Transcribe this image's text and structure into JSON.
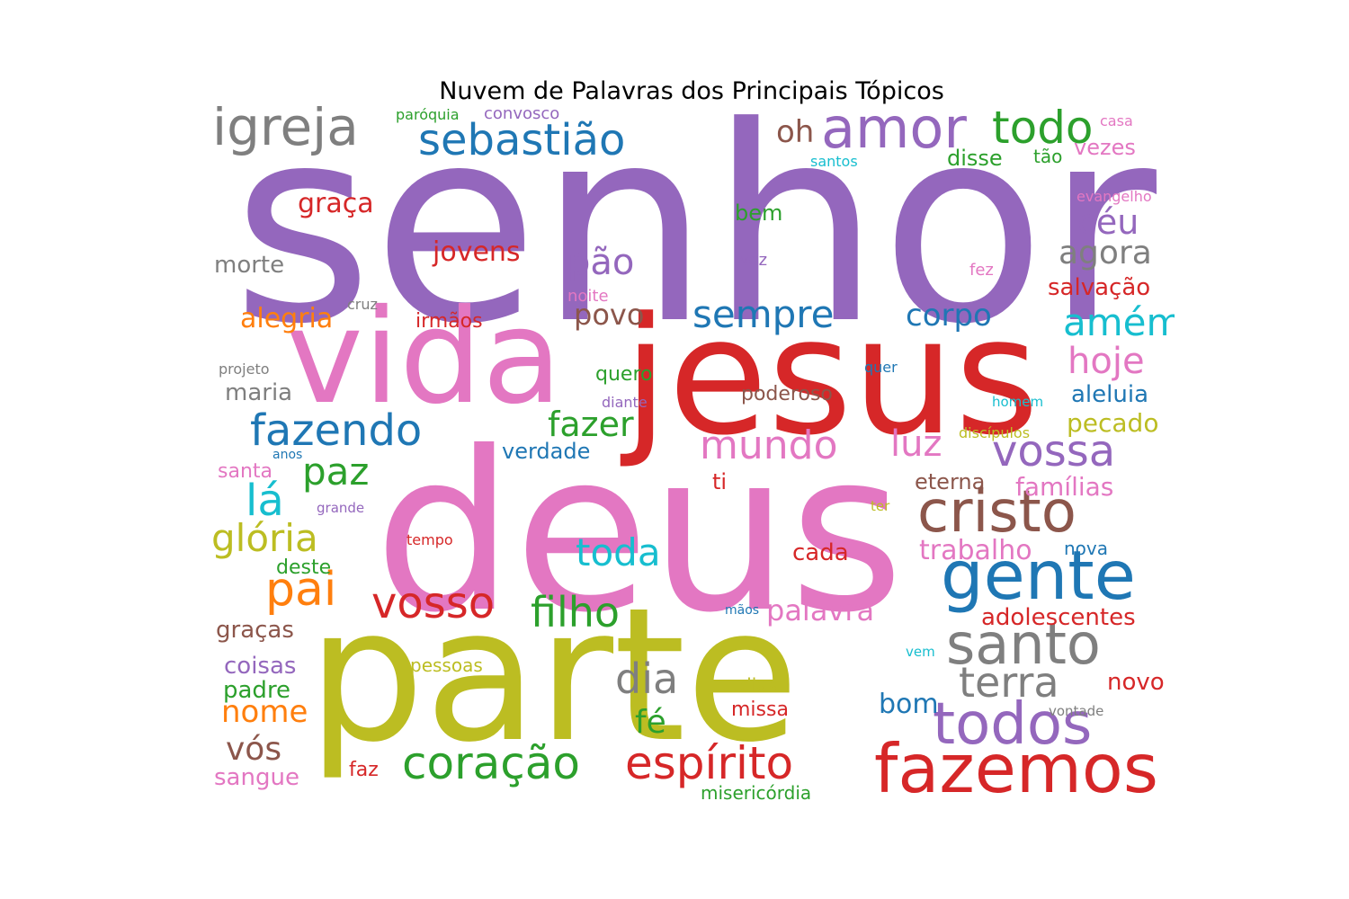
{
  "title": "Nuvem de Palavras dos Principais Tópicos",
  "palette": {
    "purple": "#9467bd",
    "red": "#d62728",
    "pink": "#e377c2",
    "olive": "#bcbd22",
    "blue": "#1f77b4",
    "green": "#2ca02c",
    "gray": "#7f7f7f",
    "brown": "#8c564b",
    "orange": "#ff7f0e",
    "cyan": "#17becf"
  },
  "words": [
    {
      "text": "senhor",
      "color": "#9467bd"
    },
    {
      "text": "deus",
      "color": "#e377c2"
    },
    {
      "text": "jesus",
      "color": "#d62728"
    },
    {
      "text": "parte",
      "color": "#bcbd22"
    },
    {
      "text": "vida",
      "color": "#e377c2"
    },
    {
      "text": "fazemos",
      "color": "#d62728"
    },
    {
      "text": "gente",
      "color": "#1f77b4"
    },
    {
      "text": "cristo",
      "color": "#8c564b"
    },
    {
      "text": "todos",
      "color": "#9467bd"
    },
    {
      "text": "santo",
      "color": "#7f7f7f"
    },
    {
      "text": "amor",
      "color": "#9467bd"
    },
    {
      "text": "igreja",
      "color": "#7f7f7f"
    },
    {
      "text": "sebastião",
      "color": "#1f77b4"
    },
    {
      "text": "todo",
      "color": "#2ca02c"
    },
    {
      "text": "coração",
      "color": "#2ca02c"
    },
    {
      "text": "espírito",
      "color": "#d62728"
    },
    {
      "text": "fazendo",
      "color": "#1f77b4"
    },
    {
      "text": "vosso",
      "color": "#d62728"
    },
    {
      "text": "vossa",
      "color": "#9467bd"
    },
    {
      "text": "pai",
      "color": "#ff7f0e"
    },
    {
      "text": "filho",
      "color": "#2ca02c"
    },
    {
      "text": "terra",
      "color": "#7f7f7f"
    },
    {
      "text": "dia",
      "color": "#7f7f7f"
    },
    {
      "text": "mundo",
      "color": "#e377c2"
    },
    {
      "text": "lá",
      "color": "#17becf"
    },
    {
      "text": "paz",
      "color": "#2ca02c"
    },
    {
      "text": "glória",
      "color": "#bcbd22"
    },
    {
      "text": "toda",
      "color": "#17becf"
    },
    {
      "text": "amém",
      "color": "#17becf"
    },
    {
      "text": "fazer",
      "color": "#2ca02c"
    },
    {
      "text": "sempre",
      "color": "#1f77b4"
    },
    {
      "text": "luz",
      "color": "#e377c2"
    },
    {
      "text": "hoje",
      "color": "#e377c2"
    },
    {
      "text": "céu",
      "color": "#9467bd"
    },
    {
      "text": "agora",
      "color": "#7f7f7f"
    },
    {
      "text": "pão",
      "color": "#9467bd"
    },
    {
      "text": "oh",
      "color": "#8c564b"
    },
    {
      "text": "corpo",
      "color": "#1f77b4"
    },
    {
      "text": "povo",
      "color": "#8c564b"
    },
    {
      "text": "vós",
      "color": "#8c564b"
    },
    {
      "text": "nome",
      "color": "#ff7f0e"
    },
    {
      "text": "fé",
      "color": "#2ca02c"
    },
    {
      "text": "palavra",
      "color": "#e377c2"
    },
    {
      "text": "jovens",
      "color": "#d62728"
    },
    {
      "text": "graça",
      "color": "#d62728"
    },
    {
      "text": "alegria",
      "color": "#ff7f0e"
    },
    {
      "text": "trabalho",
      "color": "#e377c2"
    },
    {
      "text": "adolescentes",
      "color": "#d62728"
    },
    {
      "text": "famílias",
      "color": "#e377c2"
    },
    {
      "text": "pecado",
      "color": "#bcbd22"
    },
    {
      "text": "aleluia",
      "color": "#1f77b4"
    },
    {
      "text": "salvação",
      "color": "#d62728"
    },
    {
      "text": "disse",
      "color": "#2ca02c"
    },
    {
      "text": "bem",
      "color": "#2ca02c"
    },
    {
      "text": "morte",
      "color": "#7f7f7f"
    },
    {
      "text": "vezes",
      "color": "#e377c2"
    },
    {
      "text": "maria",
      "color": "#7f7f7f"
    },
    {
      "text": "verdade",
      "color": "#1f77b4"
    },
    {
      "text": "poderoso",
      "color": "#8c564b"
    },
    {
      "text": "eterna",
      "color": "#8c564b"
    },
    {
      "text": "cada",
      "color": "#d62728"
    },
    {
      "text": "bom",
      "color": "#1f77b4"
    },
    {
      "text": "novo",
      "color": "#d62728"
    },
    {
      "text": "graças",
      "color": "#8c564b"
    },
    {
      "text": "coisas",
      "color": "#9467bd"
    },
    {
      "text": "padre",
      "color": "#2ca02c"
    },
    {
      "text": "sangue",
      "color": "#e377c2"
    },
    {
      "text": "irmãos",
      "color": "#d62728"
    },
    {
      "text": "quero",
      "color": "#2ca02c"
    },
    {
      "text": "santa",
      "color": "#e377c2"
    },
    {
      "text": "deste",
      "color": "#2ca02c"
    },
    {
      "text": "ti",
      "color": "#d62728"
    },
    {
      "text": "nova",
      "color": "#1f77b4"
    },
    {
      "text": "missa",
      "color": "#d62728"
    },
    {
      "text": "faz",
      "color": "#d62728"
    },
    {
      "text": "pessoas",
      "color": "#bcbd22"
    },
    {
      "text": "dias",
      "color": "#bcbd22"
    },
    {
      "text": "misericórdia",
      "color": "#2ca02c"
    },
    {
      "text": "tão",
      "color": "#2ca02c"
    },
    {
      "text": "paróquia",
      "color": "#2ca02c"
    },
    {
      "text": "convosco",
      "color": "#9467bd"
    },
    {
      "text": "santos",
      "color": "#17becf"
    },
    {
      "text": "casa",
      "color": "#e377c2"
    },
    {
      "text": "evangelho",
      "color": "#e377c2"
    },
    {
      "text": "voz",
      "color": "#9467bd"
    },
    {
      "text": "fez",
      "color": "#e377c2"
    },
    {
      "text": "noite",
      "color": "#e377c2"
    },
    {
      "text": "cruz",
      "color": "#7f7f7f"
    },
    {
      "text": "projeto",
      "color": "#7f7f7f"
    },
    {
      "text": "diante",
      "color": "#9467bd"
    },
    {
      "text": "quer",
      "color": "#1f77b4"
    },
    {
      "text": "homem",
      "color": "#17becf"
    },
    {
      "text": "discípulos",
      "color": "#bcbd22"
    },
    {
      "text": "anos",
      "color": "#1f77b4"
    },
    {
      "text": "grande",
      "color": "#9467bd"
    },
    {
      "text": "ter",
      "color": "#bcbd22"
    },
    {
      "text": "tempo",
      "color": "#d62728"
    },
    {
      "text": "mãos",
      "color": "#1f77b4"
    },
    {
      "text": "vem",
      "color": "#17becf"
    },
    {
      "text": "vontade",
      "color": "#7f7f7f"
    }
  ]
}
